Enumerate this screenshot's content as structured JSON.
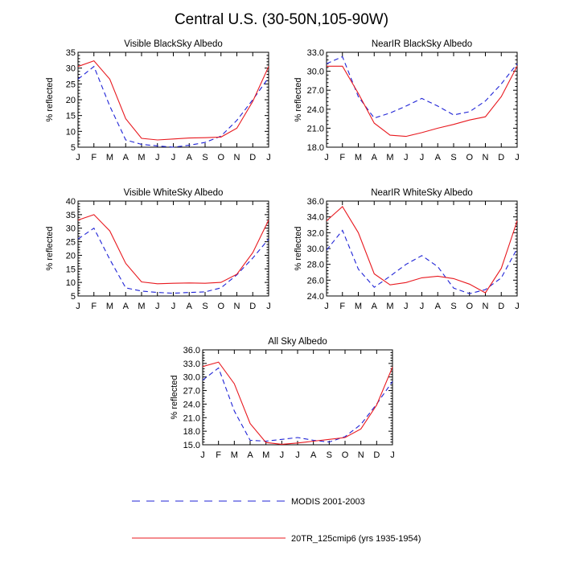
{
  "figure": {
    "title": "Central U.S. (30-50N,105-90W)"
  },
  "colors": {
    "modis": "#1f23d6",
    "model": "#e8191f",
    "axis": "#000000"
  },
  "legend": {
    "position": "bottom-left",
    "items": [
      {
        "label": "MODIS 2001-2003",
        "style": "dashed",
        "color": "#1f23d6"
      },
      {
        "label": "20TR_125cmip6 (yrs 1935-1954)",
        "style": "solid",
        "color": "#e8191f"
      }
    ]
  },
  "chart_data": [
    {
      "type": "line",
      "title": "Visible BlackSky Albedo",
      "ylabel": "% reflected",
      "xlabel": "",
      "x": [
        "J",
        "F",
        "M",
        "A",
        "M",
        "J",
        "J",
        "A",
        "S",
        "O",
        "N",
        "D",
        "J"
      ],
      "ylim": [
        5,
        35
      ],
      "yticks": [
        "5",
        "10",
        "15",
        "20",
        "25",
        "30",
        "35"
      ],
      "series": [
        {
          "name": "MODIS 2001-2003",
          "style": "dashed",
          "values": [
            26.5,
            30.5,
            18.0,
            7.3,
            5.9,
            5.4,
            5.0,
            5.6,
            6.5,
            8.5,
            13.5,
            20.0,
            27.0
          ]
        },
        {
          "name": "20TR_125cmip6 (yrs 1935-1954)",
          "style": "solid",
          "values": [
            30.5,
            32.3,
            26.5,
            14.0,
            7.8,
            7.3,
            7.6,
            7.9,
            8.0,
            8.2,
            11.0,
            19.5,
            30.5
          ]
        }
      ]
    },
    {
      "type": "line",
      "title": "NearIR BlackSky Albedo",
      "ylabel": "% reflected",
      "xlabel": "",
      "x": [
        "J",
        "F",
        "M",
        "A",
        "M",
        "J",
        "J",
        "A",
        "S",
        "O",
        "N",
        "D",
        "J"
      ],
      "ylim": [
        18.0,
        33.0
      ],
      "yticks": [
        "18.0",
        "21.0",
        "24.0",
        "27.0",
        "30.0",
        "33.0"
      ],
      "series": [
        {
          "name": "MODIS 2001-2003",
          "style": "dashed",
          "values": [
            31.2,
            32.3,
            26.0,
            22.6,
            23.4,
            24.5,
            25.7,
            24.5,
            23.1,
            23.6,
            25.3,
            28.0,
            31.2
          ]
        },
        {
          "name": "20TR_125cmip6 (yrs 1935-1954)",
          "style": "solid",
          "values": [
            30.8,
            30.8,
            26.5,
            21.8,
            19.9,
            19.7,
            20.3,
            21.0,
            21.6,
            22.3,
            22.8,
            26.0,
            30.8
          ]
        }
      ]
    },
    {
      "type": "line",
      "title": "Visible WhiteSky Albedo",
      "ylabel": "% reflected",
      "xlabel": "",
      "x": [
        "J",
        "F",
        "M",
        "A",
        "M",
        "J",
        "J",
        "A",
        "S",
        "O",
        "N",
        "D",
        "J"
      ],
      "ylim": [
        5,
        40
      ],
      "yticks": [
        "5",
        "10",
        "15",
        "20",
        "25",
        "30",
        "35",
        "40"
      ],
      "series": [
        {
          "name": "MODIS 2001-2003",
          "style": "dashed",
          "values": [
            26.0,
            30.0,
            18.5,
            8.0,
            6.8,
            6.3,
            6.0,
            6.3,
            6.5,
            8.0,
            12.8,
            19.0,
            26.0
          ]
        },
        {
          "name": "20TR_125cmip6 (yrs 1935-1954)",
          "style": "solid",
          "values": [
            33.0,
            35.0,
            29.0,
            17.0,
            10.2,
            9.5,
            9.7,
            9.8,
            9.7,
            10.0,
            13.0,
            21.0,
            33.0
          ]
        }
      ]
    },
    {
      "type": "line",
      "title": "NearIR WhiteSky Albedo",
      "ylabel": "% reflected",
      "xlabel": "",
      "x": [
        "J",
        "F",
        "M",
        "A",
        "M",
        "J",
        "J",
        "A",
        "S",
        "O",
        "N",
        "D",
        "J"
      ],
      "ylim": [
        24.0,
        36.0
      ],
      "yticks": [
        "24.0",
        "26.0",
        "28.0",
        "30.0",
        "32.0",
        "34.0",
        "36.0"
      ],
      "series": [
        {
          "name": "MODIS 2001-2003",
          "style": "dashed",
          "values": [
            29.8,
            32.3,
            27.4,
            25.1,
            26.5,
            28.0,
            29.1,
            27.7,
            25.0,
            24.3,
            24.8,
            26.3,
            30.0
          ]
        },
        {
          "name": "20TR_125cmip6 (yrs 1935-1954)",
          "style": "solid",
          "values": [
            33.5,
            35.3,
            32.0,
            26.8,
            25.4,
            25.7,
            26.3,
            26.5,
            26.2,
            25.5,
            24.4,
            27.5,
            33.5
          ]
        }
      ]
    },
    {
      "type": "line",
      "title": "All Sky Albedo",
      "ylabel": "% reflected",
      "xlabel": "",
      "x": [
        "J",
        "F",
        "M",
        "A",
        "M",
        "J",
        "J",
        "A",
        "S",
        "O",
        "N",
        "D",
        "J"
      ],
      "ylim": [
        15.0,
        36.0
      ],
      "yticks": [
        "15.0",
        "18.0",
        "21.0",
        "24.0",
        "27.0",
        "30.0",
        "33.0",
        "36.0"
      ],
      "series": [
        {
          "name": "MODIS 2001-2003",
          "style": "dashed",
          "values": [
            29.3,
            32.0,
            22.5,
            16.0,
            15.8,
            16.2,
            16.6,
            16.0,
            15.6,
            16.8,
            19.5,
            24.0,
            29.0
          ]
        },
        {
          "name": "20TR_125cmip6 (yrs 1935-1954)",
          "style": "solid",
          "values": [
            32.3,
            33.3,
            28.5,
            19.7,
            15.5,
            15.1,
            15.4,
            15.8,
            16.2,
            16.6,
            18.5,
            23.8,
            32.2
          ]
        }
      ]
    }
  ]
}
